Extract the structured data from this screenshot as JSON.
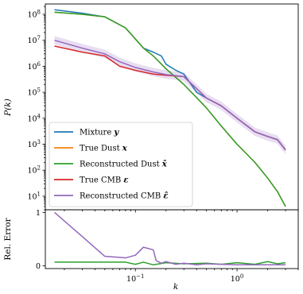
{
  "chart_data": [
    {
      "type": "line",
      "panel": "spectrum",
      "ylabel": "P(k)",
      "xscale": "log",
      "yscale": "log",
      "xlim": [
        0.013,
        4.0
      ],
      "ylim": [
        3,
        250000000
      ],
      "grid": false,
      "legend_position": "lower-left",
      "yticks": [
        {
          "value": 10,
          "label": "10",
          "exp": "1"
        },
        {
          "value": 100,
          "label": "10",
          "exp": "2"
        },
        {
          "value": 1000,
          "label": "10",
          "exp": "3"
        },
        {
          "value": 10000,
          "label": "10",
          "exp": "4"
        },
        {
          "value": 100000,
          "label": "10",
          "exp": "5"
        },
        {
          "value": 1000000,
          "label": "10",
          "exp": "6"
        },
        {
          "value": 10000000,
          "label": "10",
          "exp": "7"
        },
        {
          "value": 100000000,
          "label": "10",
          "exp": "8"
        }
      ],
      "series": [
        {
          "name": "Mixture y",
          "name_text": "Mixture ",
          "name_math": "y",
          "color": "#1f77b4",
          "x": [
            0.016,
            0.03,
            0.05,
            0.08,
            0.12,
            0.15,
            0.18,
            0.2,
            0.25,
            0.3,
            0.4,
            0.5,
            0.7,
            1.0,
            1.5,
            2.0,
            2.5,
            3.0
          ],
          "y": [
            150000000,
            110000000,
            80000000,
            30000000,
            5000000,
            3500000,
            2500000,
            1200000,
            700000,
            500000,
            100000,
            60000,
            30000,
            10000,
            3000,
            2000,
            1500,
            600
          ]
        },
        {
          "name": "True Dust x",
          "name_text": "True Dust ",
          "name_math": "x",
          "color": "#ff7f0e",
          "x": [
            0.016,
            0.03,
            0.05,
            0.08,
            0.12,
            0.15,
            0.2,
            0.3,
            0.5,
            0.7,
            1.0,
            1.5,
            2.0,
            2.5,
            3.0
          ],
          "y": [
            120000000,
            100000000,
            80000000,
            30000000,
            5000000,
            2500000,
            800000,
            200000,
            25000,
            5000,
            1000,
            200,
            50,
            15,
            4
          ]
        },
        {
          "name": "Reconstructed Dust x̂",
          "name_text": "Reconstructed Dust ",
          "name_math": "x̂",
          "color": "#2ca02c",
          "x": [
            0.016,
            0.03,
            0.05,
            0.08,
            0.12,
            0.15,
            0.2,
            0.3,
            0.5,
            0.7,
            1.0,
            1.5,
            2.0,
            2.5,
            3.0
          ],
          "y": [
            120000000,
            100000000,
            80000000,
            30000000,
            5000000,
            2500000,
            800000,
            200000,
            25000,
            5000,
            1000,
            200,
            50,
            15,
            4
          ]
        },
        {
          "name": "True CMB ε",
          "name_text": "True CMB ",
          "name_math": "ε",
          "color": "#d62728",
          "x": [
            0.016,
            0.03,
            0.05,
            0.07,
            0.1,
            0.15,
            0.2,
            0.3,
            0.5,
            0.7,
            1.0,
            1.5,
            2.0,
            2.5,
            3.0
          ],
          "y": [
            6000000,
            3500000,
            2500000,
            1000000,
            700000,
            500000,
            450000,
            400000,
            60000,
            30000,
            10000,
            3000,
            2000,
            1500,
            600
          ]
        },
        {
          "name": "Reconstructed CMB ε̂",
          "name_text": "Reconstructed CMB ",
          "name_math": "ε̂",
          "color": "#9467bd",
          "band": true,
          "x": [
            0.016,
            0.03,
            0.05,
            0.07,
            0.1,
            0.15,
            0.2,
            0.3,
            0.5,
            0.7,
            1.0,
            1.5,
            2.0,
            2.5,
            3.0
          ],
          "y": [
            10000000,
            5000000,
            3000000,
            1500000,
            900000,
            600000,
            480000,
            400000,
            60000,
            30000,
            10000,
            3000,
            2000,
            1500,
            600
          ]
        }
      ]
    },
    {
      "type": "line",
      "panel": "relative-error",
      "ylabel": "Rel. Error",
      "xlabel": "k",
      "xscale": "log",
      "xlim": [
        0.013,
        4.0
      ],
      "ylim": [
        -0.05,
        1.05
      ],
      "grid": false,
      "yticks": [
        {
          "value": 0,
          "label": "0"
        },
        {
          "value": 1,
          "label": "1"
        }
      ],
      "xticks": [
        {
          "value": 0.1,
          "label": "10",
          "exp": "−1"
        },
        {
          "value": 1,
          "label": "10",
          "exp": "0"
        }
      ],
      "series": [
        {
          "name": "Reconstructed Dust x̂",
          "color": "#2ca02c",
          "x": [
            0.016,
            0.05,
            0.08,
            0.1,
            0.12,
            0.15,
            0.2,
            0.3,
            0.5,
            0.7,
            1.0,
            1.5,
            2.0,
            2.5,
            3.0
          ],
          "y": [
            0.07,
            0.07,
            0.07,
            0.03,
            0.07,
            0.02,
            0.06,
            0.04,
            0.05,
            0.03,
            0.06,
            0.03,
            0.08,
            0.04,
            0.06
          ]
        },
        {
          "name": "Reconstructed CMB ε̂",
          "color": "#9467bd",
          "x": [
            0.016,
            0.03,
            0.05,
            0.08,
            0.1,
            0.12,
            0.15,
            0.16,
            0.18,
            0.2,
            0.25,
            0.3,
            0.4,
            0.5,
            0.7,
            1.0,
            1.5,
            2.0,
            2.5,
            3.0
          ],
          "y": [
            1.0,
            0.55,
            0.18,
            0.15,
            0.2,
            0.35,
            0.3,
            0.1,
            0.05,
            0.08,
            0.03,
            0.05,
            0.02,
            0.04,
            0.03,
            0.02,
            0.02,
            0.02,
            0.02,
            0.02
          ]
        }
      ]
    }
  ]
}
